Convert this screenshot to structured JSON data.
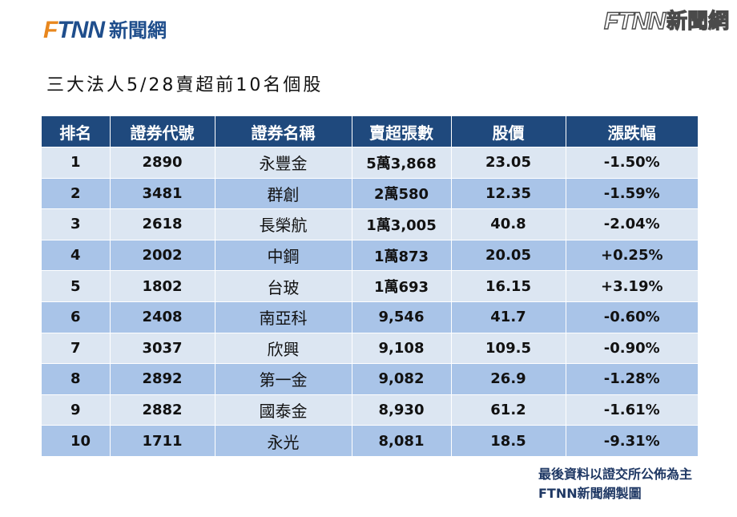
{
  "brand": {
    "mark": "FTNN",
    "name": "新聞網",
    "accent_color": "#e8871e",
    "primary_color": "#1f4e8c"
  },
  "title": "三大法人5/28賣超前10名個股",
  "table": {
    "headers": [
      "排名",
      "證券代號",
      "證券名稱",
      "賣超張數",
      "股價",
      "漲跌幅"
    ],
    "rows": [
      [
        "1",
        "2890",
        "永豐金",
        "5萬3,868",
        "23.05",
        "-1.50%"
      ],
      [
        "2",
        "3481",
        "群創",
        "2萬580",
        "12.35",
        "-1.59%"
      ],
      [
        "3",
        "2618",
        "長榮航",
        "1萬3,005",
        "40.8",
        "-2.04%"
      ],
      [
        "4",
        "2002",
        "中鋼",
        "1萬873",
        "20.05",
        "+0.25%"
      ],
      [
        "5",
        "1802",
        "台玻",
        "1萬693",
        "16.15",
        "+3.19%"
      ],
      [
        "6",
        "2408",
        "南亞科",
        "9,546",
        "41.7",
        "-0.60%"
      ],
      [
        "7",
        "3037",
        "欣興",
        "9,108",
        "109.5",
        "-0.90%"
      ],
      [
        "8",
        "2892",
        "第一金",
        "9,082",
        "26.9",
        "-1.28%"
      ],
      [
        "9",
        "2882",
        "國泰金",
        "8,930",
        "61.2",
        "-1.61%"
      ],
      [
        "10",
        "1711",
        "永光",
        "8,081",
        "18.5",
        "-9.31%"
      ]
    ],
    "header_color": "#1f497d",
    "row_color_light": "#dce6f2",
    "row_color_dark": "#a9c4e8"
  },
  "footer": {
    "source_note": "最後資料以證交所公佈為主",
    "credit": "FTNN新聞網製圖"
  }
}
